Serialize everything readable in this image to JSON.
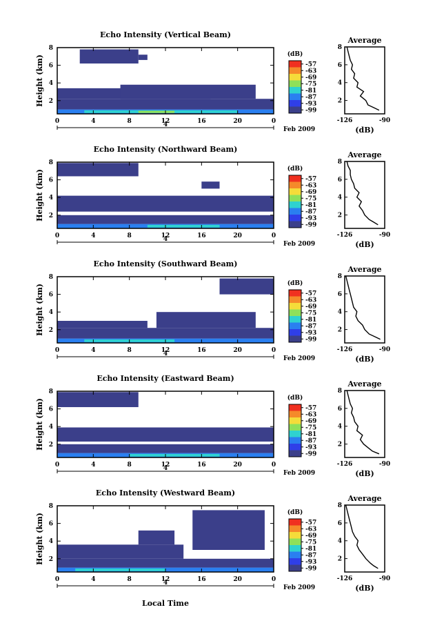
{
  "figure": {
    "xlabel": "Local Time",
    "date_label": "Feb 2009",
    "day_label": "4",
    "colorbar_unit": "(dB)",
    "average_title": "Average",
    "average_xlabel": "(dB)"
  },
  "chart_data": [
    {
      "type": "heatmap",
      "title": "Echo Intensity (Vertical Beam)",
      "xlabel": "Local Time",
      "ylabel": "Height (km)",
      "x_ticks": [
        "0",
        "4",
        "8",
        "12",
        "16",
        "20",
        "0"
      ],
      "xlim": [
        0,
        24
      ],
      "y_ticks": [
        "2",
        "4",
        "6",
        "8"
      ],
      "ylim": [
        0.5,
        8
      ],
      "colorbar_ticks": [
        "-57",
        "-63",
        "-69",
        "-75",
        "-81",
        "-87",
        "-93",
        "-99"
      ],
      "colorbar_colors": [
        "#f03020",
        "#f58a2a",
        "#f5dc3a",
        "#8fe05a",
        "#2fd2d0",
        "#2a7ff0",
        "#2f3fe8",
        "#3b3f8a"
      ],
      "profile": {
        "title": "Average",
        "xlabel": "(dB)",
        "x_ticks": [
          "-126",
          "-90"
        ],
        "xlim": [
          -126,
          -90
        ],
        "y_ticks": [
          "2",
          "4",
          "6",
          "8"
        ],
        "ylim": [
          0.5,
          8
        ],
        "height_km": [
          0.9,
          1.2,
          1.5,
          2.0,
          2.5,
          3.0,
          3.5,
          4.0,
          4.5,
          5.0,
          5.5,
          6.0,
          6.5,
          7.0,
          7.5,
          8.0
        ],
        "db": [
          -95,
          -100,
          -105,
          -107,
          -112,
          -109,
          -115,
          -114,
          -118,
          -117,
          -120,
          -119,
          -121,
          -122,
          -123,
          -124
        ]
      },
      "echo_regions": [
        {
          "t0": 0,
          "t1": 24,
          "h0": 0.5,
          "h1": 1.0,
          "level": -87
        },
        {
          "t0": 3,
          "t1": 20,
          "h0": 0.6,
          "h1": 0.9,
          "level": -81
        },
        {
          "t0": 9,
          "t1": 13,
          "h0": 0.6,
          "h1": 0.85,
          "level": -75
        },
        {
          "t0": 0,
          "t1": 24,
          "h0": 1.0,
          "h1": 2.2,
          "level": -99
        },
        {
          "t0": 0,
          "t1": 17,
          "h0": 2.2,
          "h1": 3.4,
          "level": -99
        },
        {
          "t0": 7,
          "t1": 22,
          "h0": 2.2,
          "h1": 3.8,
          "level": -99
        },
        {
          "t0": 2.5,
          "t1": 9,
          "h0": 6.2,
          "h1": 7.8,
          "level": -99
        },
        {
          "t0": 9,
          "t1": 10,
          "h0": 6.6,
          "h1": 7.2,
          "level": -99
        }
      ]
    },
    {
      "type": "heatmap",
      "title": "Echo Intensity (Northward Beam)",
      "xlabel": "Local Time",
      "ylabel": "Height (km)",
      "x_ticks": [
        "0",
        "4",
        "8",
        "12",
        "16",
        "20",
        "0"
      ],
      "xlim": [
        0,
        24
      ],
      "y_ticks": [
        "2",
        "4",
        "6",
        "8"
      ],
      "ylim": [
        0.5,
        8
      ],
      "colorbar_ticks": [
        "-57",
        "-63",
        "-69",
        "-75",
        "-81",
        "-87",
        "-93",
        "-99"
      ],
      "colorbar_colors": [
        "#f03020",
        "#f58a2a",
        "#f5dc3a",
        "#8fe05a",
        "#2fd2d0",
        "#2a7ff0",
        "#2f3fe8",
        "#3b3f8a"
      ],
      "profile": {
        "title": "Average",
        "xlabel": "(dB)",
        "x_ticks": [
          "-126",
          "-90"
        ],
        "xlim": [
          -126,
          -90
        ],
        "y_ticks": [
          "2",
          "4",
          "6",
          "8"
        ],
        "ylim": [
          0.5,
          8
        ],
        "height_km": [
          0.9,
          1.2,
          1.5,
          2.0,
          2.5,
          3.0,
          3.5,
          4.0,
          4.5,
          5.0,
          5.5,
          6.0,
          6.5,
          7.0,
          7.5,
          8.0
        ],
        "db": [
          -96,
          -100,
          -104,
          -108,
          -110,
          -113,
          -111,
          -115,
          -113,
          -117,
          -118,
          -120,
          -121,
          -121,
          -123,
          -124
        ]
      },
      "echo_regions": [
        {
          "t0": 0,
          "t1": 24,
          "h0": 0.5,
          "h1": 1.0,
          "level": -87
        },
        {
          "t0": 10,
          "t1": 18,
          "h0": 0.6,
          "h1": 0.9,
          "level": -81
        },
        {
          "t0": 0,
          "t1": 24,
          "h0": 1.0,
          "h1": 2.0,
          "level": -99
        },
        {
          "t0": 0,
          "t1": 24,
          "h0": 2.4,
          "h1": 4.2,
          "level": -99
        },
        {
          "t0": 0,
          "t1": 9,
          "h0": 6.4,
          "h1": 7.9,
          "level": -99
        },
        {
          "t0": 16,
          "t1": 18,
          "h0": 5.0,
          "h1": 5.8,
          "level": -99
        }
      ]
    },
    {
      "type": "heatmap",
      "title": "Echo Intensity (Southward Beam)",
      "xlabel": "Local Time",
      "ylabel": "Height (km)",
      "x_ticks": [
        "0",
        "4",
        "8",
        "12",
        "16",
        "20",
        "0"
      ],
      "xlim": [
        0,
        24
      ],
      "y_ticks": [
        "2",
        "4",
        "6",
        "8"
      ],
      "ylim": [
        0.5,
        8
      ],
      "colorbar_ticks": [
        "-57",
        "-63",
        "-69",
        "-75",
        "-81",
        "-87",
        "-93",
        "-99"
      ],
      "colorbar_colors": [
        "#f03020",
        "#f58a2a",
        "#f5dc3a",
        "#8fe05a",
        "#2fd2d0",
        "#2a7ff0",
        "#2f3fe8",
        "#3b3f8a"
      ],
      "profile": {
        "title": "Average",
        "xlabel": "(dB)",
        "x_ticks": [
          "-126",
          "-90"
        ],
        "xlim": [
          -126,
          -90
        ],
        "y_ticks": [
          "2",
          "4",
          "6",
          "8"
        ],
        "ylim": [
          0.5,
          8
        ],
        "height_km": [
          0.9,
          1.2,
          1.5,
          2.0,
          2.5,
          3.0,
          3.5,
          4.0,
          4.5,
          5.0,
          5.5,
          6.0,
          6.5,
          7.0,
          7.5,
          8.0
        ],
        "db": [
          -94,
          -99,
          -104,
          -108,
          -110,
          -114,
          -116,
          -115,
          -118,
          -119,
          -120,
          -121,
          -122,
          -123,
          -124,
          -125
        ]
      },
      "echo_regions": [
        {
          "t0": 0,
          "t1": 24,
          "h0": 0.5,
          "h1": 1.0,
          "level": -87
        },
        {
          "t0": 3,
          "t1": 13,
          "h0": 0.6,
          "h1": 0.9,
          "level": -81
        },
        {
          "t0": 0,
          "t1": 24,
          "h0": 1.0,
          "h1": 2.2,
          "level": -99
        },
        {
          "t0": 0,
          "t1": 10,
          "h0": 2.2,
          "h1": 3.0,
          "level": -99
        },
        {
          "t0": 11,
          "t1": 22,
          "h0": 2.2,
          "h1": 4.0,
          "level": -99
        },
        {
          "t0": 18,
          "t1": 24,
          "h0": 6.0,
          "h1": 7.8,
          "level": -99
        }
      ]
    },
    {
      "type": "heatmap",
      "title": "Echo Intensity (Eastward Beam)",
      "xlabel": "Local Time",
      "ylabel": "Height (km)",
      "x_ticks": [
        "0",
        "4",
        "8",
        "12",
        "16",
        "20",
        "0"
      ],
      "xlim": [
        0,
        24
      ],
      "y_ticks": [
        "2",
        "4",
        "6",
        "8"
      ],
      "ylim": [
        0.5,
        8
      ],
      "colorbar_ticks": [
        "-57",
        "-63",
        "-69",
        "-75",
        "-81",
        "-87",
        "-93",
        "-99"
      ],
      "colorbar_colors": [
        "#f03020",
        "#f58a2a",
        "#f5dc3a",
        "#8fe05a",
        "#2fd2d0",
        "#2a7ff0",
        "#2f3fe8",
        "#3b3f8a"
      ],
      "profile": {
        "title": "Average",
        "xlabel": "(dB)",
        "x_ticks": [
          "-126",
          "-90"
        ],
        "xlim": [
          -126,
          -90
        ],
        "y_ticks": [
          "2",
          "4",
          "6",
          "8"
        ],
        "ylim": [
          0.5,
          8
        ],
        "height_km": [
          0.9,
          1.2,
          1.5,
          2.0,
          2.5,
          3.0,
          3.5,
          4.0,
          4.5,
          5.0,
          5.5,
          6.0,
          6.5,
          7.0,
          7.5,
          8.0
        ],
        "db": [
          -95,
          -101,
          -104,
          -109,
          -112,
          -110,
          -115,
          -114,
          -117,
          -118,
          -120,
          -119,
          -121,
          -122,
          -123,
          -124
        ]
      },
      "echo_regions": [
        {
          "t0": 0,
          "t1": 24,
          "h0": 0.5,
          "h1": 1.0,
          "level": -87
        },
        {
          "t0": 8,
          "t1": 18,
          "h0": 0.6,
          "h1": 0.9,
          "level": -81
        },
        {
          "t0": 0,
          "t1": 24,
          "h0": 1.0,
          "h1": 2.0,
          "level": -99
        },
        {
          "t0": 0,
          "t1": 24,
          "h0": 2.3,
          "h1": 3.9,
          "level": -99
        },
        {
          "t0": 0,
          "t1": 9,
          "h0": 6.2,
          "h1": 7.9,
          "level": -99
        }
      ]
    },
    {
      "type": "heatmap",
      "title": "Echo Intensity (Westward Beam)",
      "xlabel": "Local Time",
      "ylabel": "Height (km)",
      "x_ticks": [
        "0",
        "4",
        "8",
        "12",
        "16",
        "20",
        "0"
      ],
      "xlim": [
        0,
        24
      ],
      "y_ticks": [
        "2",
        "4",
        "6",
        "8"
      ],
      "ylim": [
        0.5,
        8
      ],
      "colorbar_ticks": [
        "-57",
        "-63",
        "-69",
        "-75",
        "-81",
        "-87",
        "-93",
        "-99"
      ],
      "colorbar_colors": [
        "#f03020",
        "#f58a2a",
        "#f5dc3a",
        "#8fe05a",
        "#2fd2d0",
        "#2a7ff0",
        "#2f3fe8",
        "#3b3f8a"
      ],
      "profile": {
        "title": "Average",
        "xlabel": "(dB)",
        "x_ticks": [
          "-126",
          "-90"
        ],
        "xlim": [
          -126,
          -90
        ],
        "y_ticks": [
          "2",
          "4",
          "6",
          "8"
        ],
        "ylim": [
          0.5,
          8
        ],
        "height_km": [
          0.9,
          1.2,
          1.5,
          2.0,
          2.5,
          3.0,
          3.5,
          4.0,
          4.5,
          5.0,
          5.5,
          6.0,
          6.5,
          7.0,
          7.5,
          8.0
        ],
        "db": [
          -96,
          -100,
          -103,
          -107,
          -110,
          -113,
          -115,
          -114,
          -117,
          -119,
          -120,
          -121,
          -122,
          -123,
          -124,
          -125
        ]
      },
      "echo_regions": [
        {
          "t0": 0,
          "t1": 24,
          "h0": 0.5,
          "h1": 1.0,
          "level": -87
        },
        {
          "t0": 2,
          "t1": 12,
          "h0": 0.6,
          "h1": 0.9,
          "level": -81
        },
        {
          "t0": 0,
          "t1": 24,
          "h0": 1.0,
          "h1": 2.0,
          "level": -99
        },
        {
          "t0": 0,
          "t1": 14,
          "h0": 2.0,
          "h1": 3.6,
          "level": -99
        },
        {
          "t0": 9,
          "t1": 13,
          "h0": 3.6,
          "h1": 5.2,
          "level": -99
        },
        {
          "t0": 15,
          "t1": 23,
          "h0": 3.0,
          "h1": 7.5,
          "level": -99
        }
      ]
    }
  ]
}
